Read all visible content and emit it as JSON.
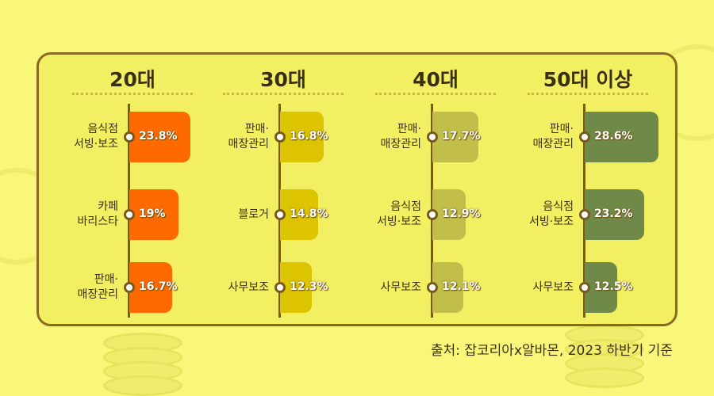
{
  "chart_data": {
    "type": "bar",
    "groups": [
      {
        "title": "20대",
        "color": "#ff6a00",
        "items": [
          {
            "label": [
              "음식점",
              "서빙·보조"
            ],
            "value": 23.8,
            "display": "23.8%"
          },
          {
            "label": [
              "카페",
              "바리스타"
            ],
            "value": 19,
            "display": "19%"
          },
          {
            "label": [
              "판매·",
              "매장관리"
            ],
            "value": 16.7,
            "display": "16.7%"
          }
        ]
      },
      {
        "title": "30대",
        "color": "#dcc400",
        "items": [
          {
            "label": [
              "판매·",
              "매장관리"
            ],
            "value": 16.8,
            "display": "16.8%"
          },
          {
            "label": [
              "블로거"
            ],
            "value": 14.8,
            "display": "14.8%"
          },
          {
            "label": [
              "사무보조"
            ],
            "value": 12.3,
            "display": "12.3%"
          }
        ]
      },
      {
        "title": "40대",
        "color": "#c1bf4a",
        "items": [
          {
            "label": [
              "판매·",
              "매장관리"
            ],
            "value": 17.7,
            "display": "17.7%"
          },
          {
            "label": [
              "음식점",
              "서빙·보조"
            ],
            "value": 12.9,
            "display": "12.9%"
          },
          {
            "label": [
              "사무보조"
            ],
            "value": 12.1,
            "display": "12.1%"
          }
        ]
      },
      {
        "title": "50대 이상",
        "color": "#6f8a48",
        "items": [
          {
            "label": [
              "판매·",
              "매장관리"
            ],
            "value": 28.6,
            "display": "28.6%"
          },
          {
            "label": [
              "음식점",
              "서빙·보조"
            ],
            "value": 23.2,
            "display": "23.2%"
          },
          {
            "label": [
              "사무보조"
            ],
            "value": 12.5,
            "display": "12.5%"
          }
        ]
      }
    ]
  },
  "source": "출처: 잡코리아x알바몬, 2023 하반기 기준"
}
